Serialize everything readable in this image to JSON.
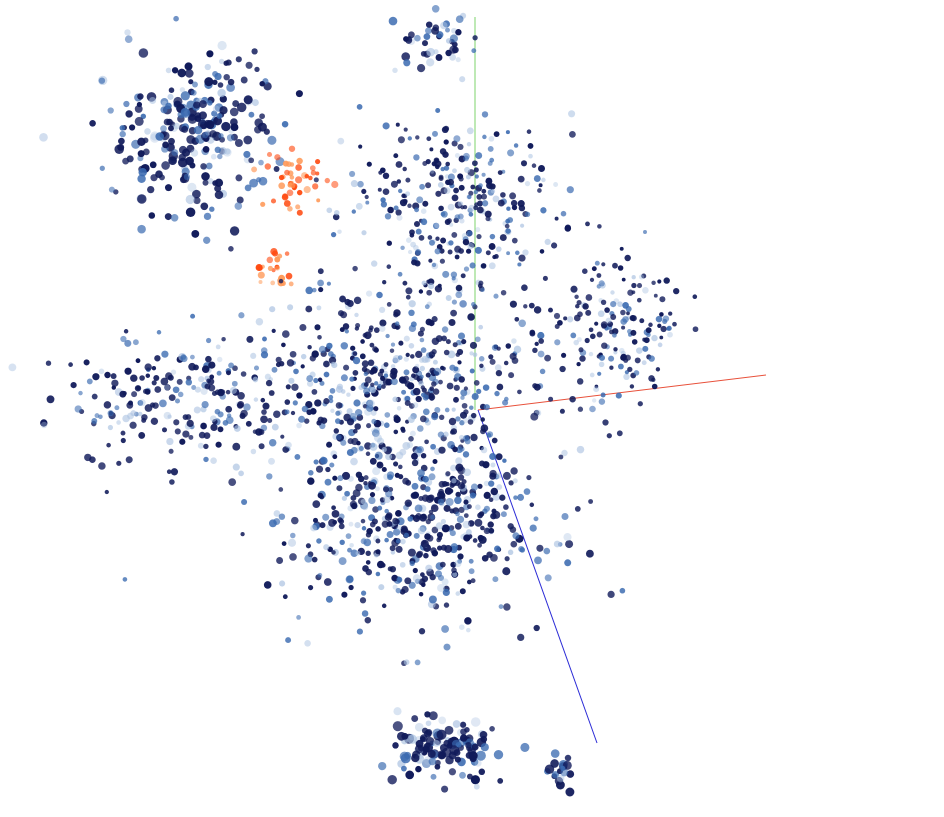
{
  "projection": {
    "mode": "3d-point-cloud",
    "axes": [
      {
        "name": "x-axis",
        "color": "#e8503a"
      },
      {
        "name": "y-axis",
        "color": "#7ed36b"
      },
      {
        "name": "z-axis",
        "color": "#2b2bd6"
      }
    ],
    "palette": {
      "background": "#ffffff",
      "default_point": "#101a5a",
      "mid_point": "#3a6ab0",
      "light_point": "#a8c0e0",
      "selected_point": "#ff4a10",
      "selected_light": "#ff9a5a"
    },
    "clusters": [
      {
        "id": "top-small",
        "selected": false,
        "density": "high"
      },
      {
        "id": "upper-left",
        "selected": false,
        "density": "high"
      },
      {
        "id": "highlighted-a",
        "selected": true,
        "density": "low"
      },
      {
        "id": "highlighted-b",
        "selected": true,
        "density": "low"
      },
      {
        "id": "upper-center",
        "selected": false,
        "density": "medium"
      },
      {
        "id": "right-diffuse",
        "selected": false,
        "density": "low"
      },
      {
        "id": "left-band",
        "selected": false,
        "density": "medium"
      },
      {
        "id": "center-main",
        "selected": false,
        "density": "high"
      },
      {
        "id": "lower-center",
        "selected": false,
        "density": "high"
      },
      {
        "id": "bottom-left",
        "selected": false,
        "density": "high"
      },
      {
        "id": "bottom-right",
        "selected": false,
        "density": "high"
      }
    ]
  }
}
